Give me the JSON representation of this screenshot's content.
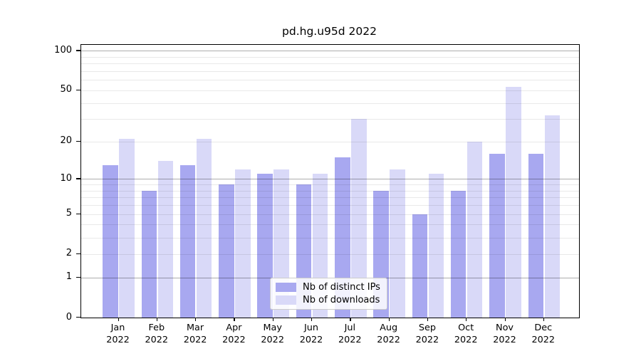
{
  "title": "pd.hg.u95d 2022",
  "chart_data": {
    "type": "bar",
    "title": "pd.hg.u95d 2022",
    "categories": [
      "Jan",
      "Feb",
      "Mar",
      "Apr",
      "May",
      "Jun",
      "Jul",
      "Aug",
      "Sep",
      "Oct",
      "Nov",
      "Dec"
    ],
    "category_year": "2022",
    "series": [
      {
        "name": "Nb of distinct IPs",
        "color": "#a8a8f0",
        "values": [
          13,
          8,
          13,
          9,
          11,
          9,
          15,
          8,
          5,
          8,
          16,
          16
        ]
      },
      {
        "name": "Nb of downloads",
        "color": "#d9d9f8",
        "values": [
          21,
          14,
          21,
          12,
          12,
          11,
          30,
          12,
          11,
          20,
          53,
          32
        ]
      }
    ],
    "yscale": "log1p",
    "ylim": [
      0,
      111
    ],
    "ytick_labels": [
      "0",
      "1",
      "2",
      "5",
      "10",
      "20",
      "50",
      "100"
    ],
    "ytick_values": [
      0,
      1,
      2,
      5,
      10,
      20,
      50,
      100
    ],
    "major_gridlines": [
      1,
      10,
      100
    ],
    "minor_gridlines": [
      2,
      3,
      4,
      5,
      6,
      7,
      8,
      9,
      20,
      30,
      40,
      50,
      60,
      70,
      80,
      90
    ],
    "grid_over_bars": true,
    "legend_position": "bottom-center"
  },
  "colors": {
    "bar_distinct_ips": "#a8a8f0",
    "bar_downloads": "#d9d9f8",
    "axis": "#000000",
    "major_grid": "#b3b3b3",
    "minor_grid": "#ebebeb",
    "legend_border": "#cccccc",
    "background": "#ffffff",
    "text": "#000000"
  }
}
